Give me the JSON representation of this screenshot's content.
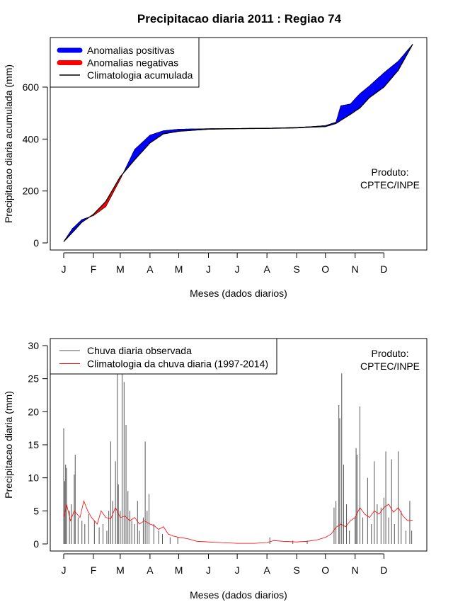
{
  "chart_data": [
    {
      "type": "area",
      "title": "Precipitacao diaria 2011 : Regiao 74",
      "xlabel": "Meses (dados diarios)",
      "ylabel": "Precipitacao diaria acumulada (mm)",
      "x_tick_labels": [
        "J",
        "F",
        "M",
        "A",
        "M",
        "J",
        "J",
        "A",
        "S",
        "O",
        "N",
        "D"
      ],
      "month_start_days": [
        1,
        32,
        60,
        91,
        121,
        152,
        182,
        213,
        244,
        274,
        305,
        335
      ],
      "y_ticks": [
        0,
        200,
        400,
        600
      ],
      "xlim": [
        1,
        365
      ],
      "ylim": [
        0,
        760
      ],
      "legend": {
        "position": "top-left",
        "entries": [
          {
            "label": "Anomalias positivas",
            "color": "#0000ff"
          },
          {
            "label": "Anomalias negativas",
            "color": "#ff0000"
          },
          {
            "label": "Climatologia acumulada",
            "color": "#000000"
          }
        ]
      },
      "annotation": [
        "Produto:",
        "CPTEC/INPE"
      ],
      "day": [
        1,
        10,
        20,
        32,
        45,
        60,
        75,
        91,
        105,
        121,
        152,
        182,
        213,
        244,
        260,
        274,
        285,
        290,
        300,
        310,
        320,
        335,
        350,
        365
      ],
      "observed_cumulative": [
        5,
        55,
        90,
        105,
        140,
        245,
        360,
        415,
        432,
        438,
        440,
        441,
        442,
        445,
        448,
        452,
        465,
        528,
        535,
        575,
        605,
        655,
        700,
        765
      ],
      "climatology_cumulative": [
        5,
        40,
        80,
        110,
        160,
        255,
        320,
        385,
        420,
        430,
        438,
        440,
        441,
        443,
        446,
        448,
        460,
        472,
        495,
        520,
        560,
        600,
        665,
        765
      ]
    },
    {
      "type": "line",
      "title": "",
      "xlabel": "Meses (dados diarios)",
      "ylabel": "Precipitacao diaria (mm)",
      "x_tick_labels": [
        "J",
        "F",
        "M",
        "A",
        "M",
        "J",
        "J",
        "A",
        "S",
        "O",
        "N",
        "D"
      ],
      "y_ticks": [
        0,
        5,
        10,
        15,
        20,
        25,
        30
      ],
      "xlim": [
        1,
        365
      ],
      "ylim": [
        0,
        30
      ],
      "legend": {
        "position": "top-left",
        "entries": [
          {
            "label": "Chuva diaria observada",
            "color": "#555555"
          },
          {
            "label": "Climatologia da chuva diaria (1997-2014)",
            "color": "#ff0000"
          }
        ]
      },
      "annotation": [
        "Produto:",
        "CPTEC/INPE"
      ],
      "observed_spikes": [
        {
          "day": 1,
          "value": 17.5
        },
        {
          "day": 2,
          "value": 9.5
        },
        {
          "day": 3,
          "value": 12
        },
        {
          "day": 4,
          "value": 11.5
        },
        {
          "day": 7,
          "value": 5
        },
        {
          "day": 9,
          "value": 6
        },
        {
          "day": 12,
          "value": 10.5
        },
        {
          "day": 13,
          "value": 13.5
        },
        {
          "day": 16,
          "value": 4
        },
        {
          "day": 20,
          "value": 3.5
        },
        {
          "day": 23,
          "value": 3
        },
        {
          "day": 27,
          "value": 4.5
        },
        {
          "day": 33,
          "value": 3.5
        },
        {
          "day": 38,
          "value": 2.5
        },
        {
          "day": 42,
          "value": 3
        },
        {
          "day": 46,
          "value": 2
        },
        {
          "day": 48,
          "value": 5
        },
        {
          "day": 50,
          "value": 15.5
        },
        {
          "day": 52,
          "value": 6.5
        },
        {
          "day": 55,
          "value": 12.5
        },
        {
          "day": 57,
          "value": 27
        },
        {
          "day": 58,
          "value": 9
        },
        {
          "day": 60,
          "value": 5
        },
        {
          "day": 62,
          "value": 26
        },
        {
          "day": 64,
          "value": 24.5
        },
        {
          "day": 66,
          "value": 18
        },
        {
          "day": 68,
          "value": 8
        },
        {
          "day": 70,
          "value": 5
        },
        {
          "day": 72,
          "value": 3.5
        },
        {
          "day": 75,
          "value": 3
        },
        {
          "day": 78,
          "value": 6.5
        },
        {
          "day": 80,
          "value": 2
        },
        {
          "day": 84,
          "value": 4
        },
        {
          "day": 86,
          "value": 15.5
        },
        {
          "day": 88,
          "value": 5
        },
        {
          "day": 90,
          "value": 7.5
        },
        {
          "day": 95,
          "value": 3
        },
        {
          "day": 100,
          "value": 2
        },
        {
          "day": 104,
          "value": 1.5
        },
        {
          "day": 112,
          "value": 1
        },
        {
          "day": 120,
          "value": 1
        },
        {
          "day": 216,
          "value": 1
        },
        {
          "day": 240,
          "value": 0.5
        },
        {
          "day": 255,
          "value": 0.5
        },
        {
          "day": 283,
          "value": 5.5
        },
        {
          "day": 285,
          "value": 6.5
        },
        {
          "day": 288,
          "value": 21
        },
        {
          "day": 289,
          "value": 19
        },
        {
          "day": 291,
          "value": 25.8
        },
        {
          "day": 293,
          "value": 12
        },
        {
          "day": 296,
          "value": 6
        },
        {
          "day": 299,
          "value": 2
        },
        {
          "day": 305,
          "value": 4
        },
        {
          "day": 306,
          "value": 14.5
        },
        {
          "day": 307,
          "value": 13.5
        },
        {
          "day": 310,
          "value": 20.8
        },
        {
          "day": 313,
          "value": 4
        },
        {
          "day": 318,
          "value": 10
        },
        {
          "day": 322,
          "value": 3
        },
        {
          "day": 325,
          "value": 12.5
        },
        {
          "day": 328,
          "value": 6
        },
        {
          "day": 332,
          "value": 5.5
        },
        {
          "day": 335,
          "value": 7
        },
        {
          "day": 337,
          "value": 14
        },
        {
          "day": 340,
          "value": 4
        },
        {
          "day": 343,
          "value": 12.8
        },
        {
          "day": 346,
          "value": 3
        },
        {
          "day": 350,
          "value": 14
        },
        {
          "day": 353,
          "value": 5
        },
        {
          "day": 358,
          "value": 2
        },
        {
          "day": 362,
          "value": 6.5
        },
        {
          "day": 364,
          "value": 2
        }
      ],
      "climatology_daily": [
        {
          "day": 1,
          "value": 4
        },
        {
          "day": 4,
          "value": 6
        },
        {
          "day": 8,
          "value": 3.5
        },
        {
          "day": 12,
          "value": 5
        },
        {
          "day": 18,
          "value": 4
        },
        {
          "day": 22,
          "value": 6.5
        },
        {
          "day": 26,
          "value": 5
        },
        {
          "day": 30,
          "value": 4
        },
        {
          "day": 36,
          "value": 3
        },
        {
          "day": 40,
          "value": 5
        },
        {
          "day": 45,
          "value": 4
        },
        {
          "day": 50,
          "value": 3.8
        },
        {
          "day": 55,
          "value": 5.5
        },
        {
          "day": 60,
          "value": 4
        },
        {
          "day": 65,
          "value": 4.2
        },
        {
          "day": 70,
          "value": 3.5
        },
        {
          "day": 75,
          "value": 4
        },
        {
          "day": 80,
          "value": 3
        },
        {
          "day": 85,
          "value": 3.5
        },
        {
          "day": 91,
          "value": 3
        },
        {
          "day": 95,
          "value": 2.8
        },
        {
          "day": 100,
          "value": 2.2
        },
        {
          "day": 105,
          "value": 2.6
        },
        {
          "day": 110,
          "value": 1.5
        },
        {
          "day": 115,
          "value": 1.2
        },
        {
          "day": 121,
          "value": 1
        },
        {
          "day": 130,
          "value": 0.8
        },
        {
          "day": 140,
          "value": 0.4
        },
        {
          "day": 152,
          "value": 0.3
        },
        {
          "day": 165,
          "value": 0.2
        },
        {
          "day": 182,
          "value": 0.1
        },
        {
          "day": 200,
          "value": 0.1
        },
        {
          "day": 213,
          "value": 0.2
        },
        {
          "day": 220,
          "value": 0.5
        },
        {
          "day": 230,
          "value": 0.4
        },
        {
          "day": 244,
          "value": 0.3
        },
        {
          "day": 255,
          "value": 0.4
        },
        {
          "day": 265,
          "value": 0.6
        },
        {
          "day": 274,
          "value": 1
        },
        {
          "day": 280,
          "value": 1.5
        },
        {
          "day": 285,
          "value": 2.5
        },
        {
          "day": 290,
          "value": 3
        },
        {
          "day": 295,
          "value": 2.6
        },
        {
          "day": 300,
          "value": 3.5
        },
        {
          "day": 305,
          "value": 4
        },
        {
          "day": 310,
          "value": 5.5
        },
        {
          "day": 315,
          "value": 4.5
        },
        {
          "day": 320,
          "value": 4
        },
        {
          "day": 325,
          "value": 5
        },
        {
          "day": 330,
          "value": 4.5
        },
        {
          "day": 335,
          "value": 5.5
        },
        {
          "day": 340,
          "value": 6
        },
        {
          "day": 345,
          "value": 4.8
        },
        {
          "day": 350,
          "value": 5.5
        },
        {
          "day": 355,
          "value": 4.2
        },
        {
          "day": 360,
          "value": 3.5
        },
        {
          "day": 365,
          "value": 3.6
        }
      ]
    }
  ]
}
